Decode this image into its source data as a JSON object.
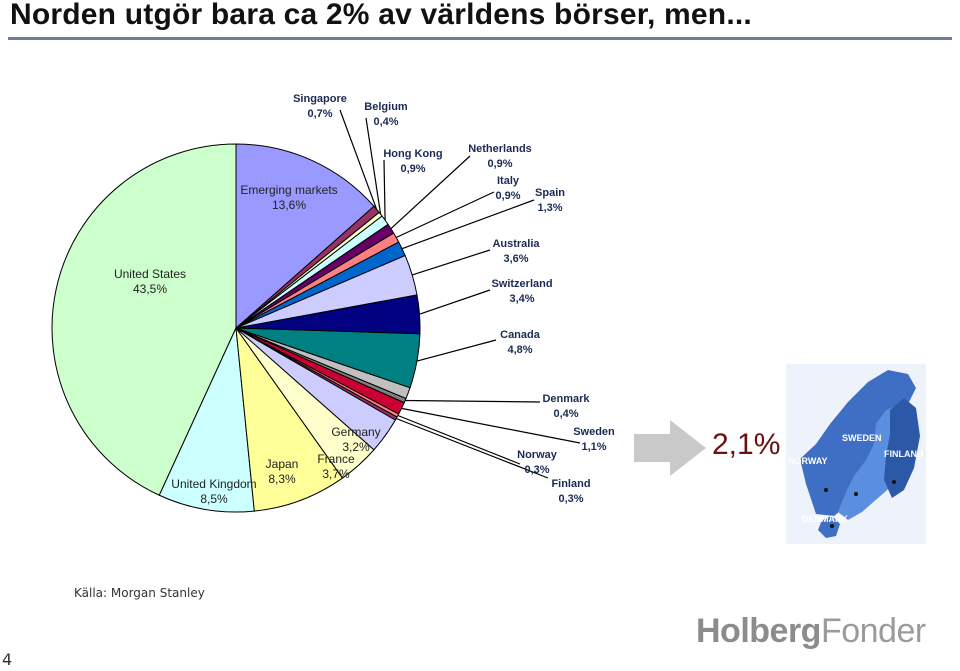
{
  "slide": {
    "title": "Norden utgör bara ca 2% av världens börser, men...",
    "source": "Källa: Morgan Stanley",
    "page_number": "4",
    "nordic_share": "2,1%",
    "logo_part1": "Holberg",
    "logo_part2": "Fonder"
  },
  "map": {
    "labels": [
      "SWEDEN",
      "NORWAY",
      "FINLAND",
      "DENMARK"
    ]
  },
  "chart_data": {
    "type": "pie",
    "title": "",
    "slices": [
      {
        "name": "United States",
        "value": 43.5,
        "label": "43,5%",
        "color": "#ccffcc"
      },
      {
        "name": "United Kingdom",
        "value": 8.5,
        "label": "8,5%",
        "color": "#ccffff"
      },
      {
        "name": "Japan",
        "value": 8.3,
        "label": "8,3%",
        "color": "#ffff99"
      },
      {
        "name": "France",
        "value": 3.7,
        "label": "3,7%",
        "color": "#ffffcc"
      },
      {
        "name": "Germany",
        "value": 3.2,
        "label": "3,2%",
        "color": "#ccccff"
      },
      {
        "name": "Finland",
        "value": 0.3,
        "label": "0,3%",
        "color": "#993366"
      },
      {
        "name": "Norway",
        "value": 0.3,
        "label": "0,3%",
        "color": "#ff8080"
      },
      {
        "name": "Sweden",
        "value": 1.1,
        "label": "1,1%",
        "color": "#cc0033"
      },
      {
        "name": "Denmark",
        "value": 0.4,
        "label": "0,4%",
        "color": "#808080"
      },
      {
        "name": "(unlabeled)",
        "value": 1.0,
        "label": "",
        "color": "#c0c0c0"
      },
      {
        "name": "Canada",
        "value": 4.8,
        "label": "4,8%",
        "color": "#008080"
      },
      {
        "name": "Switzerland",
        "value": 3.4,
        "label": "3,4%",
        "color": "#000080"
      },
      {
        "name": "Australia",
        "value": 3.6,
        "label": "3,6%",
        "color": "#ccccff"
      },
      {
        "name": "Spain",
        "value": 1.3,
        "label": "1,3%",
        "color": "#0066cc"
      },
      {
        "name": "Italy",
        "value": 0.9,
        "label": "0,9%",
        "color": "#ff8080"
      },
      {
        "name": "Netherlands",
        "value": 0.9,
        "label": "0,9%",
        "color": "#660066"
      },
      {
        "name": "Hong Kong",
        "value": 0.9,
        "label": "0,9%",
        "color": "#ccffff"
      },
      {
        "name": "Belgium",
        "value": 0.4,
        "label": "0,4%",
        "color": "#ffffcc"
      },
      {
        "name": "Singapore",
        "value": 0.7,
        "label": "0,7%",
        "color": "#993366"
      },
      {
        "name": "Emerging markets",
        "value": 13.6,
        "label": "13,6%",
        "color": "#9999ff"
      }
    ]
  }
}
